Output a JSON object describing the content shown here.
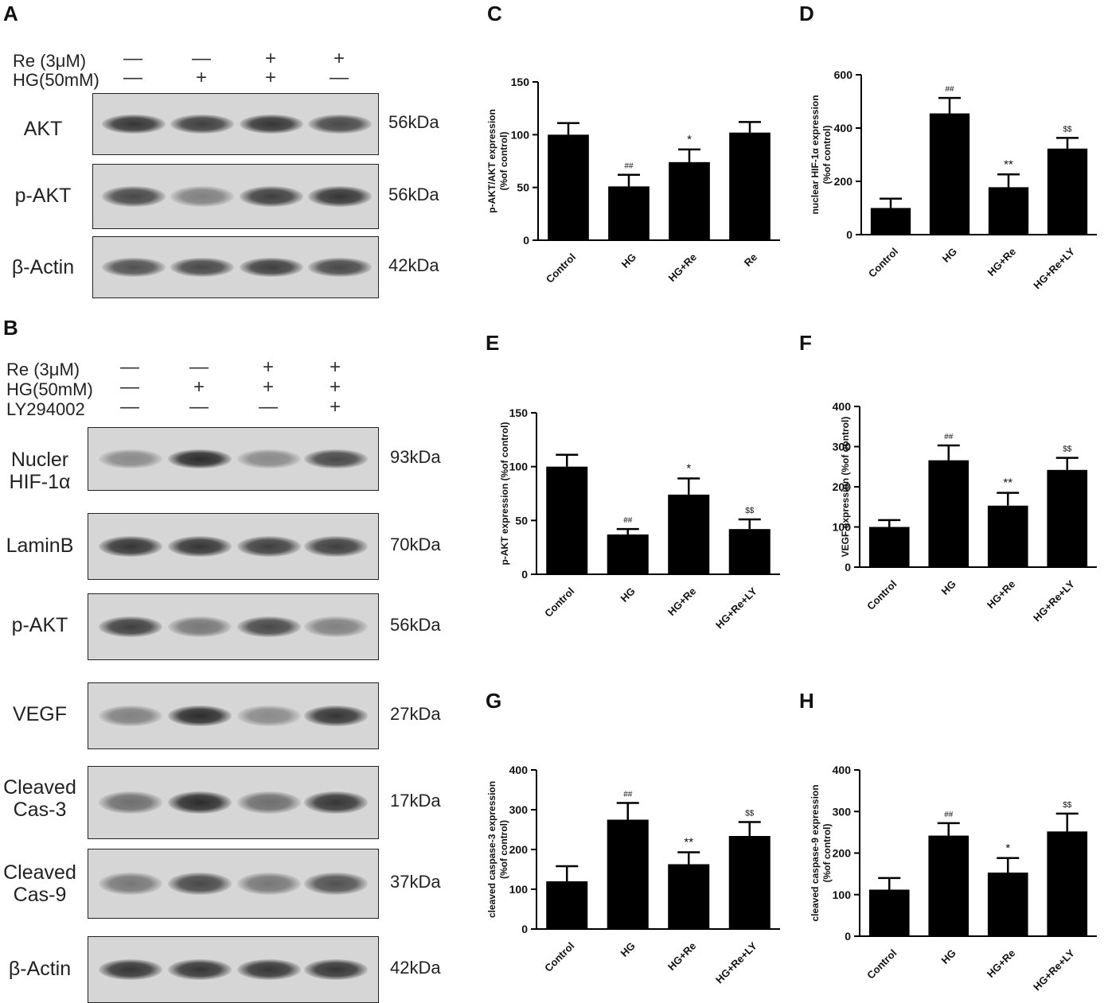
{
  "colors": {
    "bar": "#000000",
    "axis": "#000000",
    "blot_bg": "#d6d6d6",
    "band": "#222222"
  },
  "panels": {
    "A": {
      "letter": "A",
      "treatments": [
        {
          "label": "Re (3μM)",
          "signs": [
            "—",
            "—",
            "+",
            "+"
          ]
        },
        {
          "label": "HG(50mM)",
          "signs": [
            "—",
            "+",
            "+",
            "—"
          ]
        }
      ],
      "blots": [
        {
          "label": "AKT",
          "kda": "56kDa",
          "intensity": [
            0.85,
            0.8,
            0.85,
            0.75
          ]
        },
        {
          "label": "p-AKT",
          "kda": "56kDa",
          "intensity": [
            0.75,
            0.45,
            0.8,
            0.85
          ]
        },
        {
          "label": "β-Actin",
          "kda": "42kDa",
          "intensity": [
            0.7,
            0.75,
            0.8,
            0.75
          ]
        }
      ]
    },
    "B": {
      "letter": "B",
      "treatments": [
        {
          "label": "Re (3μM)",
          "signs": [
            "—",
            "—",
            "+",
            "+"
          ]
        },
        {
          "label": "HG(50mM)",
          "signs": [
            "—",
            "+",
            "+",
            "+"
          ]
        },
        {
          "label": "LY294002",
          "signs": [
            "—",
            "—",
            "—",
            "+"
          ]
        }
      ],
      "blots": [
        {
          "label": "Nucler\nHIF-1α",
          "kda": "93kDa",
          "intensity": [
            0.4,
            0.9,
            0.4,
            0.75
          ]
        },
        {
          "label": "LaminB",
          "kda": "70kDa",
          "intensity": [
            0.85,
            0.85,
            0.8,
            0.8
          ]
        },
        {
          "label": "p-AKT",
          "kda": "56kDa",
          "intensity": [
            0.8,
            0.5,
            0.75,
            0.45
          ]
        },
        {
          "label": "VEGF",
          "kda": "27kDa",
          "intensity": [
            0.45,
            0.9,
            0.4,
            0.85
          ]
        },
        {
          "label": "Cleaved\nCas-3",
          "kda": "17kDa",
          "intensity": [
            0.55,
            0.9,
            0.55,
            0.85
          ]
        },
        {
          "label": "Cleaved\nCas-9",
          "kda": "37kDa",
          "intensity": [
            0.5,
            0.75,
            0.5,
            0.7
          ]
        },
        {
          "label": "β-Actin",
          "kda": "42kDa",
          "intensity": [
            0.85,
            0.85,
            0.85,
            0.85
          ]
        }
      ]
    }
  },
  "chart_data": [
    {
      "id": "C",
      "type": "bar",
      "letter": "C",
      "categories": [
        "Control",
        "HG",
        "HG+Re",
        "Re"
      ],
      "values": [
        100,
        51,
        74,
        102
      ],
      "errors": [
        11,
        11,
        12,
        10
      ],
      "annotations": [
        "",
        "##",
        "*",
        ""
      ],
      "ylabel": "p-AKT/AKT expression\n(%of control)",
      "ylim": [
        0,
        150
      ],
      "yticks": [
        0,
        50,
        100,
        150
      ]
    },
    {
      "id": "D",
      "type": "bar",
      "letter": "D",
      "categories": [
        "Control",
        "HG",
        "HG+Re",
        "HG+Re+LY"
      ],
      "values": [
        100,
        455,
        178,
        323
      ],
      "errors": [
        35,
        58,
        48,
        40
      ],
      "annotations": [
        "",
        "##",
        "**",
        "$$"
      ],
      "ylabel": "nuclear HIF-1α  expression\n(%of control)",
      "ylim": [
        0,
        600
      ],
      "yticks": [
        0,
        200,
        400,
        600
      ]
    },
    {
      "id": "E",
      "type": "bar",
      "letter": "E",
      "categories": [
        "Control",
        "HG",
        "HG+Re",
        "HG+Re+LY"
      ],
      "values": [
        100,
        37,
        74,
        42
      ],
      "errors": [
        11,
        5,
        15,
        9
      ],
      "annotations": [
        "",
        "##",
        "*",
        "$$"
      ],
      "ylabel": "p-AKT expression (%of control)",
      "ylim": [
        0,
        150
      ],
      "yticks": [
        0,
        50,
        100,
        150
      ]
    },
    {
      "id": "F",
      "type": "bar",
      "letter": "F",
      "categories": [
        "Control",
        "HG",
        "HG+Re",
        "HG+Re+LY"
      ],
      "values": [
        100,
        266,
        153,
        242
      ],
      "errors": [
        17,
        37,
        32,
        30
      ],
      "annotations": [
        "",
        "##",
        "**",
        "$$"
      ],
      "ylabel": "VEGF expression (%of control)",
      "ylim": [
        0,
        400
      ],
      "yticks": [
        0,
        100,
        200,
        300,
        400
      ]
    },
    {
      "id": "G",
      "type": "bar",
      "letter": "G",
      "categories": [
        "Control",
        "HG",
        "HG+Re",
        "HG+Re+LY"
      ],
      "values": [
        120,
        275,
        163,
        234
      ],
      "errors": [
        38,
        42,
        30,
        35
      ],
      "annotations": [
        "",
        "##",
        "**",
        "$$"
      ],
      "ylabel": "cleaved caspase-3 expression\n(%of control)",
      "ylim": [
        0,
        400
      ],
      "yticks": [
        0,
        100,
        200,
        300,
        400
      ]
    },
    {
      "id": "H",
      "type": "bar",
      "letter": "H",
      "categories": [
        "Control",
        "HG",
        "HG+Re",
        "HG+Re+LY"
      ],
      "values": [
        112,
        242,
        153,
        252
      ],
      "errors": [
        28,
        30,
        35,
        43
      ],
      "annotations": [
        "",
        "##",
        "*",
        "$$"
      ],
      "ylabel": "cleaved caspase-9 expression\n(%of control)",
      "ylim": [
        0,
        400
      ],
      "yticks": [
        0,
        100,
        200,
        300,
        400
      ]
    }
  ]
}
